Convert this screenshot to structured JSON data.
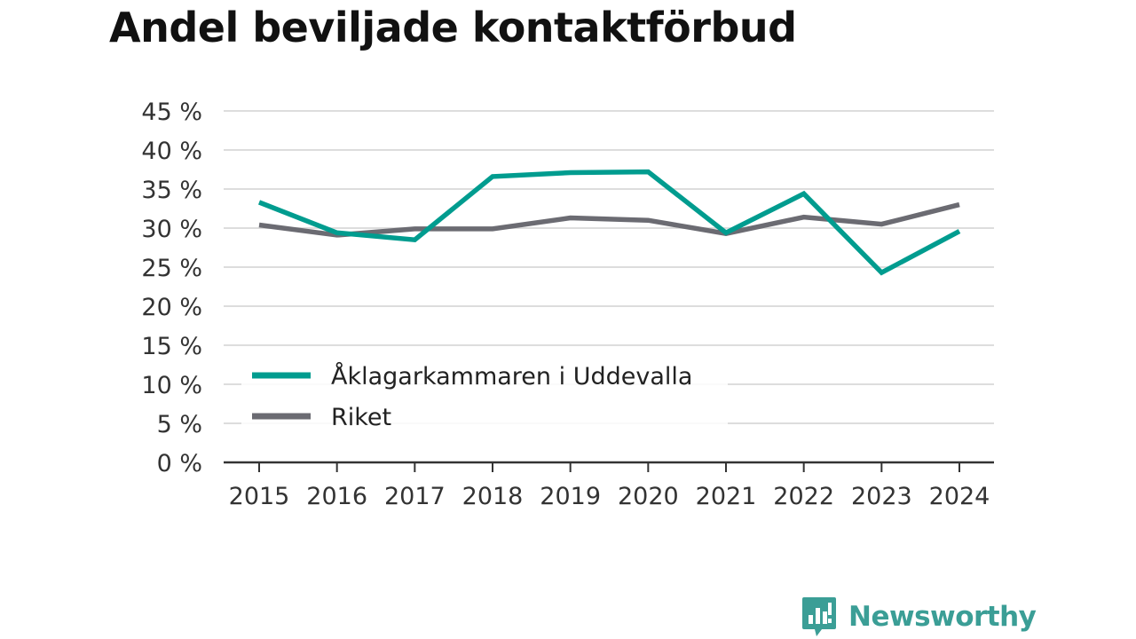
{
  "header": {
    "title": "Andel beviljade kontaktförbud"
  },
  "brand": {
    "name": "Newsworthy"
  },
  "colors": {
    "series_1": "#009c8f",
    "series_2": "#6b6b72",
    "grid": "#dddddd",
    "axis": "#333333",
    "brand": "#3b9e96"
  },
  "chart_data": {
    "type": "line",
    "title": "Andel beviljade kontaktförbud",
    "xlabel": "",
    "ylabel": "",
    "x": [
      "2015",
      "2016",
      "2017",
      "2018",
      "2019",
      "2020",
      "2021",
      "2022",
      "2023",
      "2024"
    ],
    "y_tick_labels": [
      "0 %",
      "5 %",
      "10 %",
      "15 %",
      "20 %",
      "25 %",
      "30 %",
      "35 %",
      "40 %",
      "45 %"
    ],
    "ylim": [
      0,
      45
    ],
    "grid": true,
    "legend_position": "bottom-left",
    "series": [
      {
        "name": "Åklagarkammaren i Uddevalla",
        "color": "#009c8f",
        "values": [
          33.3,
          29.4,
          28.5,
          36.6,
          37.1,
          37.2,
          29.4,
          34.4,
          24.3,
          29.6
        ]
      },
      {
        "name": "Riket",
        "color": "#6b6b72",
        "values": [
          30.4,
          29.1,
          29.9,
          29.9,
          31.3,
          31.0,
          29.3,
          31.4,
          30.5,
          33.0
        ]
      }
    ]
  }
}
